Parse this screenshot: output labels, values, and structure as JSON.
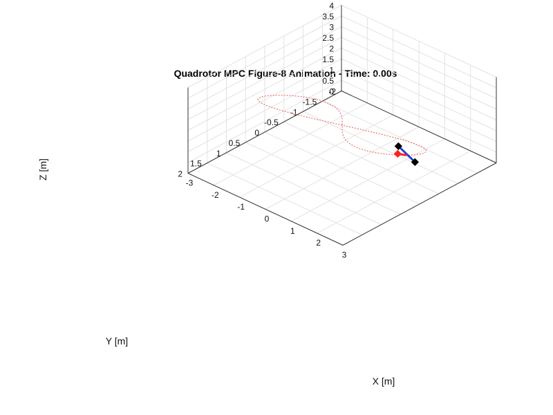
{
  "chart_data": {
    "type": "line3d",
    "title": "Quadrotor MPC Figure-8 Animation - Time: 0.00s",
    "xlabel": "X [m]",
    "ylabel": "Y [m]",
    "zlabel": "Z [m]",
    "xlim": [
      -3,
      3
    ],
    "ylim": [
      -2,
      2
    ],
    "zlim": [
      0,
      4
    ],
    "xticks": [
      "-3",
      "-2",
      "-1",
      "0",
      "1",
      "2",
      "3"
    ],
    "yticks": [
      "-2",
      "-1.5",
      "-1",
      "-0.5",
      "0",
      "0.5",
      "1",
      "1.5",
      "2"
    ],
    "zticks": [
      "0",
      "0.5",
      "1",
      "1.5",
      "2",
      "2.5",
      "3",
      "3.5",
      "4"
    ],
    "grid": true,
    "colors": {
      "trajectory": "#f26b6b",
      "arm": "#1f3fe0",
      "heading": "#ff2020",
      "rotor": "#000000",
      "box": "#333333",
      "grid": "#e2e2e2"
    },
    "series": [
      {
        "style": "dotted",
        "curve": "figure-8 (lemniscate)",
        "param": {
          "amplitude_x": 2.5,
          "amplitude_y": 1.7,
          "center_z": 2.0,
          "amplitude_z": 0.8
        }
      }
    ],
    "quadrotor": {
      "position": [
        2.5,
        0.0,
        2.0
      ],
      "arms": "blue cross",
      "rotors": "black",
      "heading_marker": "red"
    }
  }
}
